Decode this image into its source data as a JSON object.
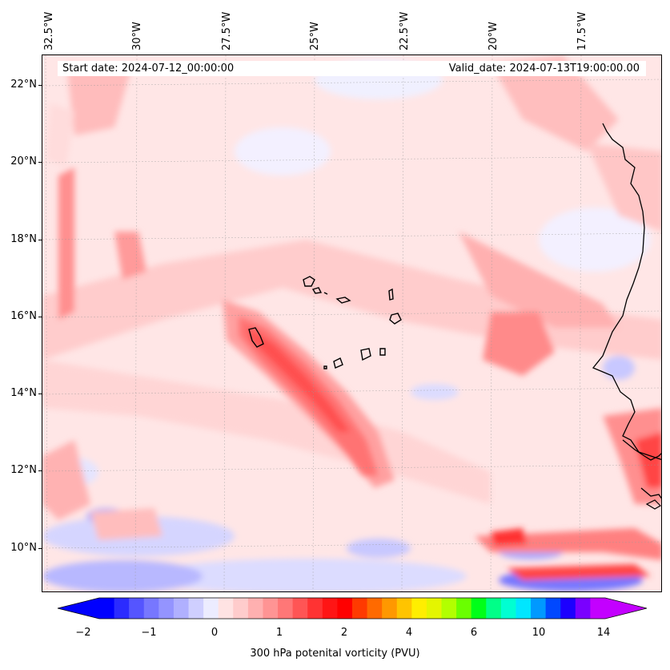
{
  "map": {
    "header": {
      "start_date": "Start date: 2024-07-12_00:00:00",
      "valid_date": "Valid_date: 2024-07-13T19:00:00.00"
    },
    "lon_labels": [
      "32.5°W",
      "30°W",
      "27.5°W",
      "25°W",
      "22.5°W",
      "20°W",
      "17.5°W"
    ],
    "lat_labels": [
      "22°N",
      "20°N",
      "18°N",
      "16°N",
      "14°N",
      "12°N",
      "10°N"
    ],
    "colorbar": {
      "label": "300 hPa potenital vorticity (PVU)",
      "tick_labels": [
        "−2",
        "−1",
        "0",
        "1",
        "2",
        "4",
        "6",
        "10",
        "14"
      ],
      "colors": [
        "#0000ff",
        "#2b2bff",
        "#5555ff",
        "#7777ff",
        "#9494ff",
        "#b0b0ff",
        "#cfcfff",
        "#ececff",
        "#ffe3e3",
        "#ffcccc",
        "#ffb0b0",
        "#ff9494",
        "#ff7777",
        "#ff5555",
        "#ff3333",
        "#ff1515",
        "#ff0000",
        "#ff3a00",
        "#ff6a00",
        "#ff9800",
        "#ffc400",
        "#ffee00",
        "#e4f500",
        "#b2ff00",
        "#6aff00",
        "#00ff19",
        "#00ff88",
        "#00ffd2",
        "#00e6ff",
        "#0099ff",
        "#0048ff",
        "#1c00ff",
        "#7a00ff",
        "#c300ff"
      ],
      "extend_min_color": "#0000ff",
      "extend_max_color": "#c300ff"
    }
  }
}
